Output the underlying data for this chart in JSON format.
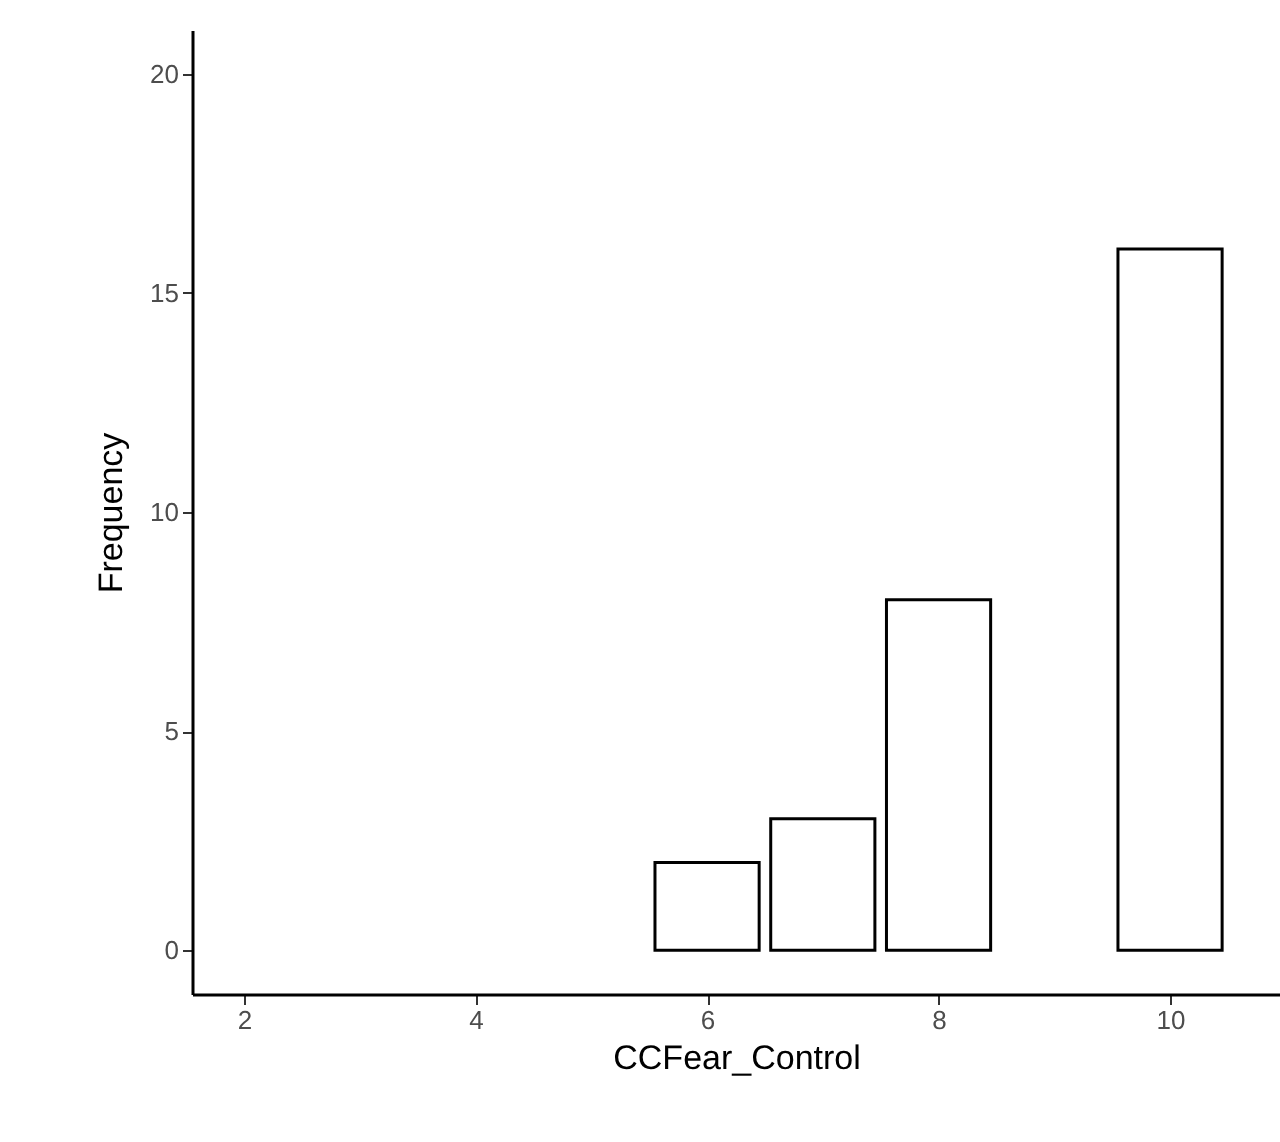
{
  "chart_data": {
    "type": "bar",
    "x": [
      6,
      7,
      8,
      10
    ],
    "values": [
      2,
      3,
      8,
      16
    ],
    "color": "#ffffff",
    "xlabel": "CCFear_Control",
    "ylabel": "Frequency",
    "xlim": [
      1.55,
      10.95
    ],
    "xticks": [
      2,
      4,
      6,
      8,
      10
    ],
    "ylim": [
      -1,
      21
    ],
    "yticks": [
      0,
      5,
      10,
      15,
      20
    ],
    "grid": false
  }
}
